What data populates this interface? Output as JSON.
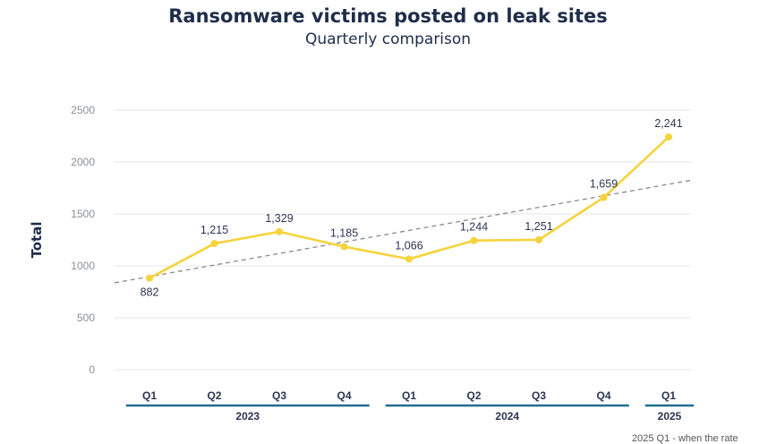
{
  "chart_data": {
    "type": "line",
    "title": "Ransomware victims posted on leak sites",
    "subtitle": "Quarterly comparison",
    "ylabel": "Total",
    "xlabel": "",
    "ylim": [
      0,
      2500
    ],
    "yticks": [
      0,
      500,
      1000,
      1500,
      2000,
      2500
    ],
    "categories": [
      "Q1",
      "Q2",
      "Q3",
      "Q4",
      "Q1",
      "Q2",
      "Q3",
      "Q4",
      "Q1"
    ],
    "groups": [
      {
        "label": "2023",
        "span": 4
      },
      {
        "label": "2024",
        "span": 4
      },
      {
        "label": "2025",
        "span": 1
      }
    ],
    "series": [
      {
        "values": [
          882,
          1215,
          1329,
          1185,
          1066,
          1244,
          1251,
          1659,
          2241
        ],
        "data_labels": [
          "882",
          "1,215",
          "1,329",
          "1,185",
          "1,066",
          "1,244",
          "1,251",
          "1,659",
          "2,241"
        ]
      }
    ],
    "trendline": true,
    "grid": true,
    "colors": {
      "line": "#f5d33b",
      "trend": "#8a8a8a",
      "grid": "#e6e6e6",
      "group_bar": "#1e6e8e"
    }
  },
  "footnote": "2025 Q1 - when the rate"
}
